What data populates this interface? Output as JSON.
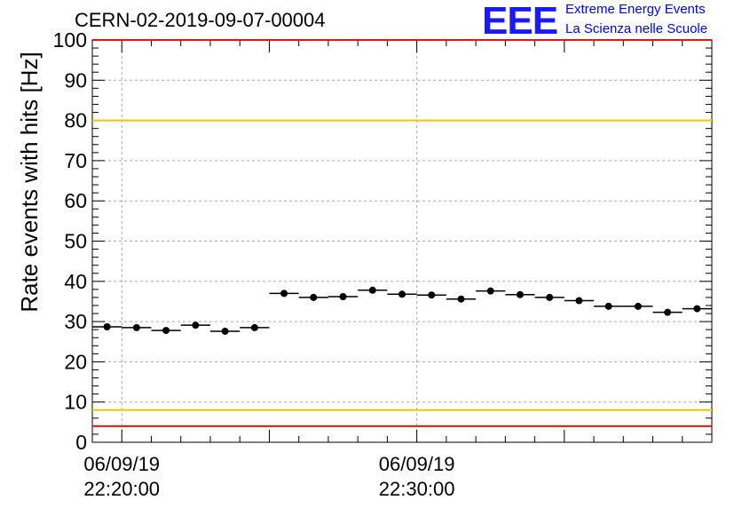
{
  "chart_data": {
    "type": "scatter",
    "title": "CERN-02-2019-09-07-00004",
    "ylabel": "Rate events with hits [Hz]",
    "xlabel": "",
    "ylim": [
      0,
      100
    ],
    "x_range": [
      "22:19:00",
      "22:40:00"
    ],
    "y_ticks": [
      "0",
      "10",
      "20",
      "30",
      "40",
      "50",
      "60",
      "70",
      "80",
      "90",
      "100"
    ],
    "x_tick_labels": [
      {
        "date": "06/09/19",
        "time": "22:20:00"
      },
      {
        "date": "06/09/19",
        "time": "22:30:00"
      }
    ],
    "grid": true,
    "reference_lines": [
      {
        "value": 100,
        "color": "#ee1111"
      },
      {
        "value": 80,
        "color": "#e8c800"
      },
      {
        "value": 8,
        "color": "#e8c800"
      },
      {
        "value": 4,
        "color": "#ee1111"
      }
    ],
    "series": [
      {
        "points": [
          {
            "x_start": "22:19:00",
            "x_end": "22:20:00",
            "y": 28.7
          },
          {
            "x_start": "22:20:00",
            "x_end": "22:21:00",
            "y": 28.5
          },
          {
            "x_start": "22:21:00",
            "x_end": "22:22:00",
            "y": 27.8
          },
          {
            "x_start": "22:22:00",
            "x_end": "22:23:00",
            "y": 29.1
          },
          {
            "x_start": "22:23:00",
            "x_end": "22:24:00",
            "y": 27.6
          },
          {
            "x_start": "22:24:00",
            "x_end": "22:25:00",
            "y": 28.5
          },
          {
            "x_start": "22:25:00",
            "x_end": "22:26:00",
            "y": 37.0
          },
          {
            "x_start": "22:26:00",
            "x_end": "22:27:00",
            "y": 36.0
          },
          {
            "x_start": "22:27:00",
            "x_end": "22:28:00",
            "y": 36.2
          },
          {
            "x_start": "22:28:00",
            "x_end": "22:29:00",
            "y": 37.8
          },
          {
            "x_start": "22:29:00",
            "x_end": "22:30:00",
            "y": 36.8
          },
          {
            "x_start": "22:30:00",
            "x_end": "22:31:00",
            "y": 36.6
          },
          {
            "x_start": "22:31:00",
            "x_end": "22:32:00",
            "y": 35.6
          },
          {
            "x_start": "22:32:00",
            "x_end": "22:33:00",
            "y": 37.6
          },
          {
            "x_start": "22:33:00",
            "x_end": "22:34:00",
            "y": 36.7
          },
          {
            "x_start": "22:34:00",
            "x_end": "22:35:00",
            "y": 36.0
          },
          {
            "x_start": "22:35:00",
            "x_end": "22:36:00",
            "y": 35.2
          },
          {
            "x_start": "22:36:00",
            "x_end": "22:37:00",
            "y": 33.8
          },
          {
            "x_start": "22:37:00",
            "x_end": "22:38:00",
            "y": 33.8
          },
          {
            "x_start": "22:38:00",
            "x_end": "22:39:00",
            "y": 32.3
          },
          {
            "x_start": "22:39:00",
            "x_end": "22:40:00",
            "y": 33.2
          }
        ]
      }
    ]
  },
  "logo": {
    "mark": "EEE",
    "line1": "Extreme Energy Events",
    "line2": "La Scienza nelle Scuole",
    "color": "#0000ee"
  }
}
